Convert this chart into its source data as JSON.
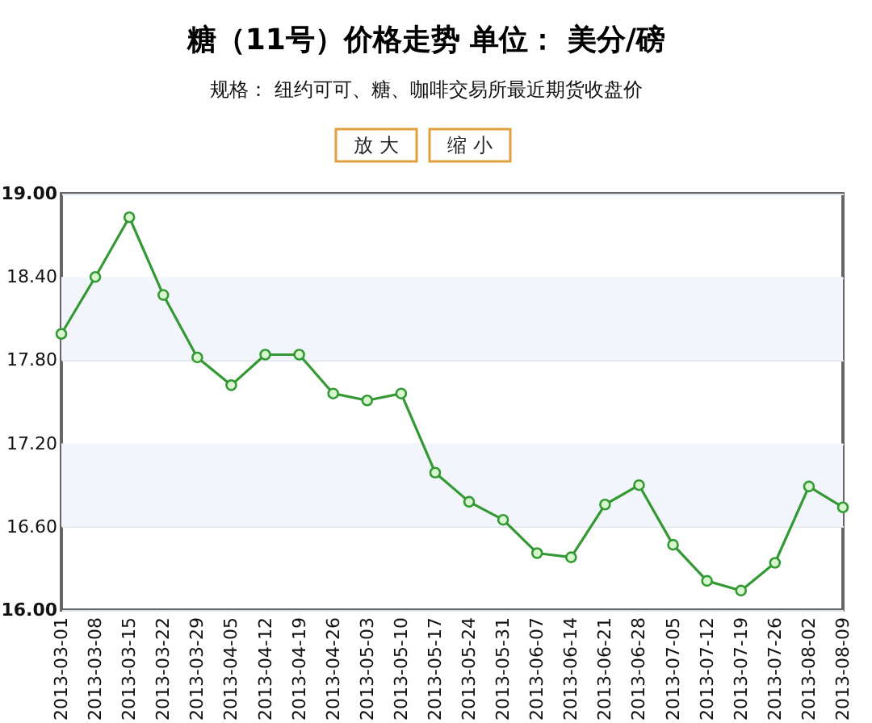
{
  "chart_data": {
    "type": "line",
    "title": "糖（11号）价格走势  单位：  美分/磅",
    "subtitle": "规格： 纽约可可、糖、咖啡交易所最近期货收盘价",
    "annotations": [
      "放 大",
      "缩 小"
    ],
    "categories": [
      "2013-03-01",
      "2013-03-08",
      "2013-03-15",
      "2013-03-22",
      "2013-03-29",
      "2013-04-05",
      "2013-04-12",
      "2013-04-19",
      "2013-04-26",
      "2013-05-03",
      "2013-05-10",
      "2013-05-17",
      "2013-05-24",
      "2013-05-31",
      "2013-06-07",
      "2013-06-14",
      "2013-06-21",
      "2013-06-28",
      "2013-07-05",
      "2013-07-12",
      "2013-07-19",
      "2013-07-26",
      "2013-08-02",
      "2013-08-09"
    ],
    "values": [
      17.99,
      18.4,
      18.83,
      18.27,
      17.82,
      17.62,
      17.84,
      17.84,
      17.56,
      17.51,
      17.56,
      16.99,
      16.78,
      16.65,
      16.41,
      16.38,
      16.76,
      16.9,
      16.47,
      16.21,
      16.14,
      16.34,
      16.89,
      16.74
    ],
    "color": "#339933",
    "marker": "circle",
    "line_style": "solid",
    "ylim": [
      16.0,
      19.0
    ],
    "yticks": [
      {
        "value": 16.0,
        "label": "16.00"
      },
      {
        "value": 16.6,
        "label": "16.60"
      },
      {
        "value": 17.2,
        "label": "17.20"
      },
      {
        "value": 17.8,
        "label": "17.80"
      },
      {
        "value": 18.4,
        "label": "18.40"
      },
      {
        "value": 19.0,
        "label": "19.00"
      }
    ],
    "grid": "y",
    "bands": [
      {
        "axis": "y",
        "from": 17.8,
        "to": 18.4,
        "color": "#f2f6fc"
      },
      {
        "axis": "y",
        "from": 16.6,
        "to": 17.2,
        "color": "#f2f6fc"
      }
    ]
  }
}
